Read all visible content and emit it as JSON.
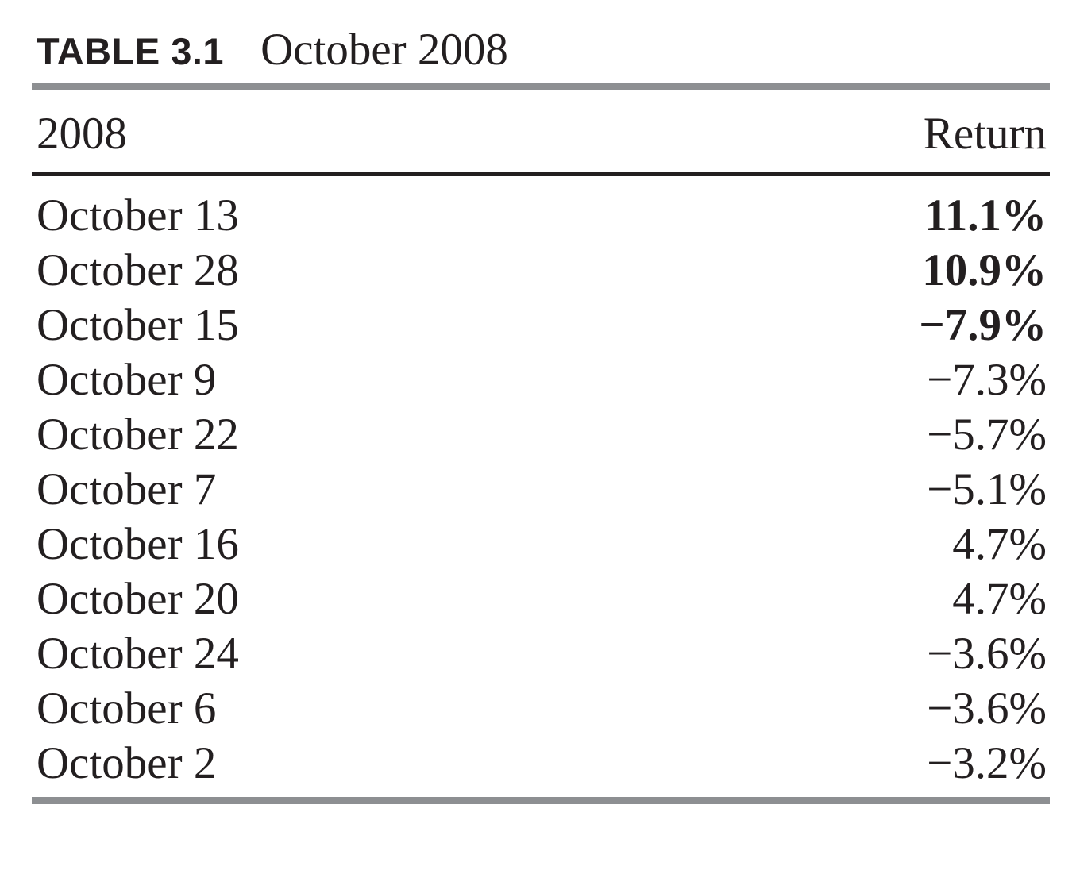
{
  "table": {
    "label": "TABLE 3.1",
    "title": "October 2008",
    "columns": {
      "date": "2008",
      "value": "Return"
    },
    "rows": [
      {
        "date": "October 13",
        "return": "11.1%",
        "bold": true
      },
      {
        "date": "October 28",
        "return": "10.9%",
        "bold": true
      },
      {
        "date": "October 15",
        "return": "−7.9%",
        "bold": true
      },
      {
        "date": "October 9",
        "return": "−7.3%",
        "bold": false
      },
      {
        "date": "October 22",
        "return": "−5.7%",
        "bold": false
      },
      {
        "date": "October 7",
        "return": "−5.1%",
        "bold": false
      },
      {
        "date": "October 16",
        "return": "4.7%",
        "bold": false
      },
      {
        "date": "October 20",
        "return": "4.7%",
        "bold": false
      },
      {
        "date": "October 24",
        "return": "−3.6%",
        "bold": false
      },
      {
        "date": "October 6",
        "return": "−3.6%",
        "bold": false
      },
      {
        "date": "October 2",
        "return": "−3.2%",
        "bold": false
      }
    ]
  },
  "colors": {
    "text": "#231f20",
    "rule_gray": "#8d8f92",
    "rule_black": "#231f20"
  }
}
